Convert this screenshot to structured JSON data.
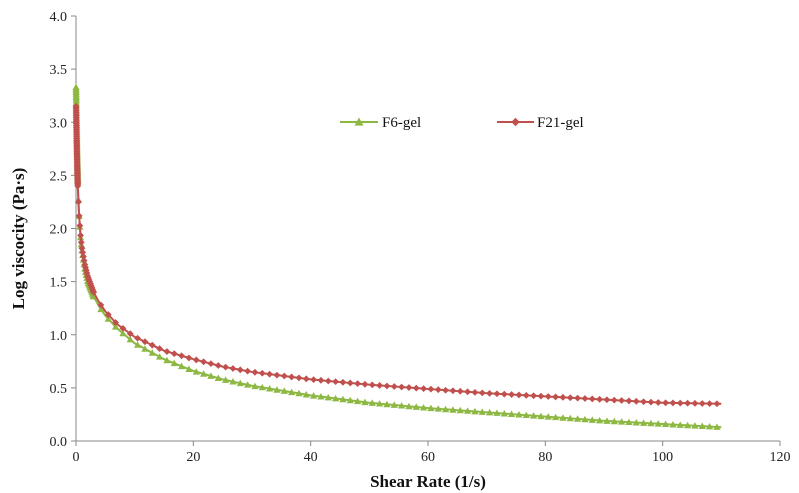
{
  "chart_data": {
    "type": "line",
    "xlabel": "Shear Rate (1/s)",
    "ylabel": "Log viscocity (Pa·s)",
    "xlim": [
      0,
      120
    ],
    "ylim": [
      0,
      4.0
    ],
    "x_ticks": [
      "0",
      "20",
      "40",
      "60",
      "80",
      "100",
      "120"
    ],
    "y_ticks": [
      "0.0",
      "0.5",
      "1.0",
      "1.5",
      "2.0",
      "2.5",
      "3.0",
      "3.5",
      "4.0"
    ],
    "grid": false,
    "legend_position": "top-center",
    "series": [
      {
        "name": "F6-gel",
        "color": "#8DB843",
        "marker": "triangle",
        "x": [
          0,
          0.05,
          0.1,
          0.2,
          0.3,
          0.5,
          0.8,
          1,
          1.5,
          2,
          3,
          4,
          5,
          7,
          10,
          15,
          20,
          25,
          30,
          40,
          50,
          60,
          70,
          80,
          90,
          100,
          110
        ],
        "y": [
          3.33,
          3.2,
          3.0,
          2.7,
          2.45,
          2.15,
          1.9,
          1.8,
          1.62,
          1.5,
          1.36,
          1.26,
          1.18,
          1.06,
          0.92,
          0.77,
          0.66,
          0.58,
          0.52,
          0.43,
          0.36,
          0.31,
          0.27,
          0.23,
          0.19,
          0.16,
          0.13
        ]
      },
      {
        "name": "F21-gel",
        "color": "#C0504D",
        "marker": "diamond",
        "x": [
          0,
          0.05,
          0.1,
          0.2,
          0.3,
          0.5,
          0.8,
          1,
          1.5,
          2,
          3,
          4,
          5,
          7,
          10,
          15,
          20,
          25,
          30,
          40,
          50,
          60,
          70,
          80,
          90,
          100,
          110
        ],
        "y": [
          3.15,
          3.0,
          2.85,
          2.6,
          2.4,
          2.15,
          1.92,
          1.82,
          1.66,
          1.55,
          1.4,
          1.3,
          1.22,
          1.1,
          0.98,
          0.85,
          0.77,
          0.7,
          0.65,
          0.58,
          0.53,
          0.49,
          0.45,
          0.42,
          0.39,
          0.36,
          0.35
        ]
      }
    ]
  }
}
